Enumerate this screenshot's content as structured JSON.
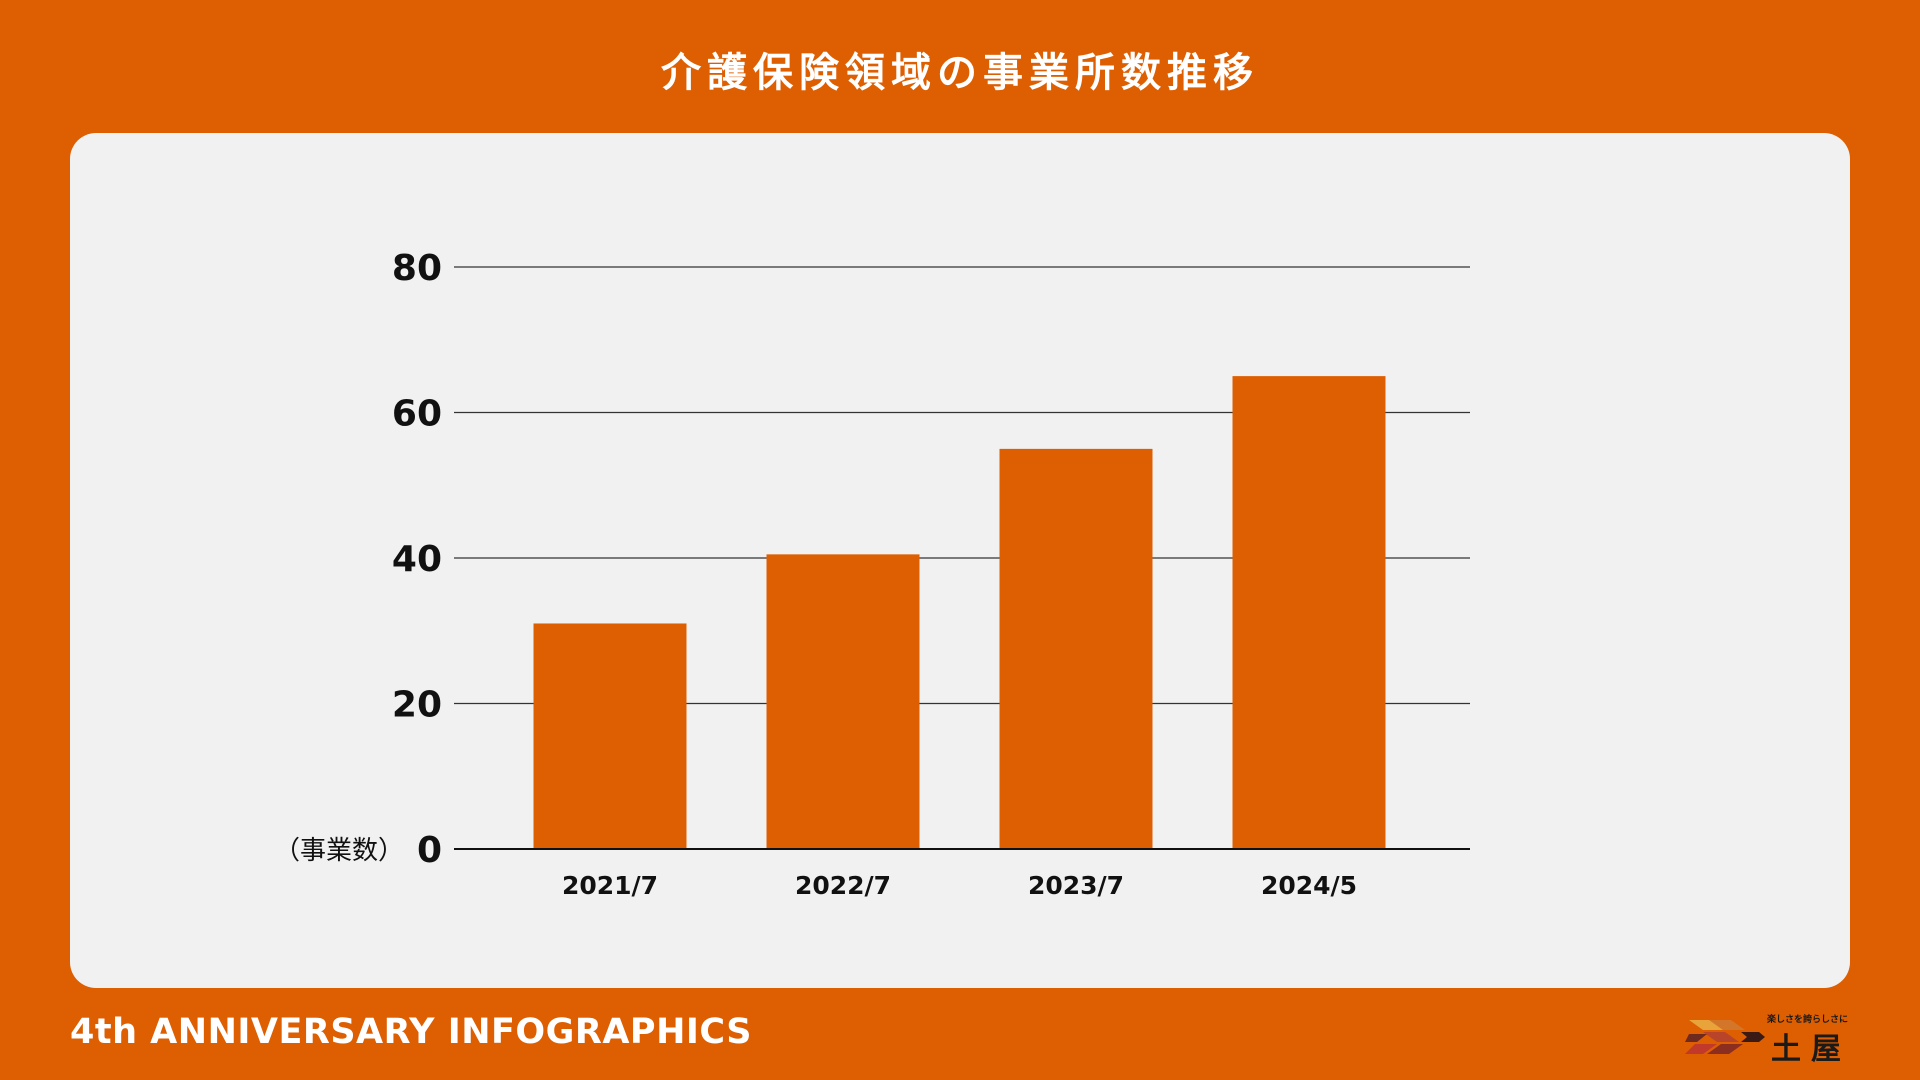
{
  "page": {
    "title": "介護保険領域の事業所数推移",
    "footer": "4th ANNIVERSARY INFOGRAPHICS"
  },
  "logo": {
    "tagline": "楽しさを誇らしさに",
    "name": "土屋"
  },
  "colors": {
    "background": "#DE5E02",
    "panel": "#F1F1F1",
    "bar": "#DE5E02",
    "text": "#111111"
  },
  "chart_data": {
    "type": "bar",
    "title": "介護保険領域の事業所数推移",
    "categories": [
      "2021/7",
      "2022/7",
      "2023/7",
      "2024/5"
    ],
    "values": [
      31,
      40.5,
      55,
      65
    ],
    "ylabel": "（事業数）",
    "ylim": [
      0,
      80
    ],
    "yticks": [
      {
        "value": 0,
        "label": "0"
      },
      {
        "value": 20,
        "label": "20"
      },
      {
        "value": 40,
        "label": "40"
      },
      {
        "value": 60,
        "label": "60"
      },
      {
        "value": 80,
        "label": "80"
      }
    ],
    "grid": true,
    "legend": "none"
  }
}
